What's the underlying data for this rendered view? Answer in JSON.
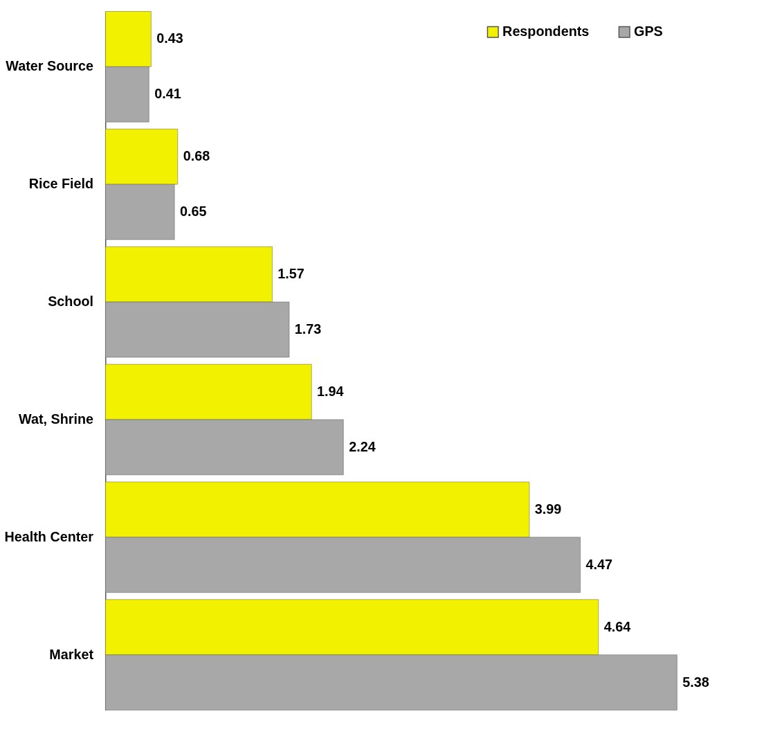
{
  "chart_data": {
    "type": "bar",
    "orientation": "horizontal",
    "categories": [
      "Water Source",
      "Rice Field",
      "School",
      "Wat, Shrine",
      "Health Center",
      "Market"
    ],
    "series": [
      {
        "name": "Respondents",
        "color": "#f2f200",
        "values": [
          0.43,
          0.68,
          1.57,
          1.94,
          3.99,
          4.64
        ]
      },
      {
        "name": "GPS",
        "color": "#a8a8a8",
        "values": [
          0.41,
          0.65,
          1.73,
          2.24,
          4.47,
          5.38
        ]
      }
    ],
    "data_labels": true,
    "legend": "top right"
  }
}
